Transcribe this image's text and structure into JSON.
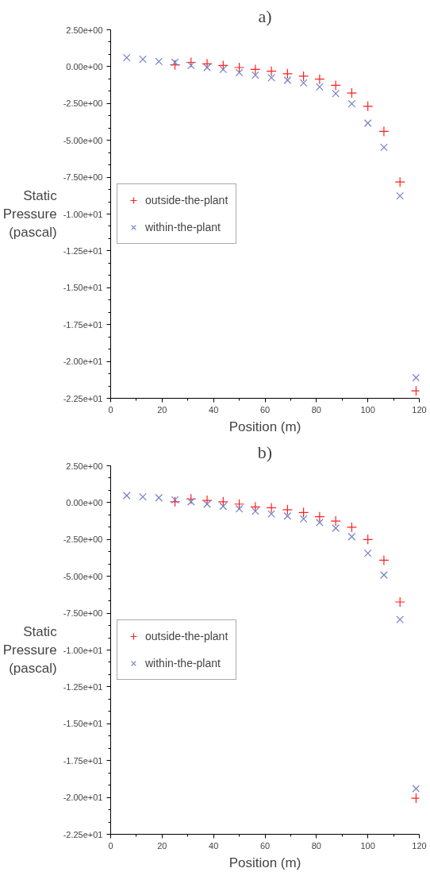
{
  "chart_data": [
    {
      "type": "scatter",
      "title": "a)",
      "xlabel": "Position (m)",
      "ylabel": "Static Pressure (pascal)",
      "xlim": [
        0,
        120
      ],
      "xticks": [
        0,
        20,
        40,
        60,
        80,
        100,
        120
      ],
      "ylim": [
        -22.5,
        2.5
      ],
      "yticks": [
        {
          "value": 2.5,
          "label": "2.50e+00"
        },
        {
          "value": 0,
          "label": "0.00e+00"
        },
        {
          "value": -2.5,
          "label": "-2.50e+00"
        },
        {
          "value": -5,
          "label": "-5.00e+00"
        },
        {
          "value": -7.5,
          "label": "-7.50e+00"
        },
        {
          "value": -10,
          "label": "-1.00e+01"
        },
        {
          "value": -12.5,
          "label": "-1.25e+01"
        },
        {
          "value": -15,
          "label": "-1.50e+01"
        },
        {
          "value": -17.5,
          "label": "-1.75e+01"
        },
        {
          "value": -20,
          "label": "-2.00e+01"
        },
        {
          "value": -22.5,
          "label": "-2.25e+01"
        }
      ],
      "grid": false,
      "legend": "left",
      "series": [
        {
          "name": "outside-the-plant",
          "color": "#ff2020",
          "marker": "cross",
          "x": [
            25,
            31.25,
            37.5,
            43.75,
            50,
            56.25,
            62.5,
            68.75,
            75,
            81.25,
            87.5,
            93.75,
            100,
            106.25,
            112.5,
            118.75
          ],
          "values": [
            0.12,
            0.29,
            0.19,
            0.08,
            -0.06,
            -0.19,
            -0.31,
            -0.48,
            -0.65,
            -0.85,
            -1.27,
            -1.79,
            -2.69,
            -4.39,
            -7.83,
            -22.0
          ]
        },
        {
          "name": "within-the-plant",
          "color": "#7080c8",
          "marker": "x",
          "x": [
            6.25,
            12.5,
            18.75,
            25,
            31.25,
            37.5,
            43.75,
            50,
            56.25,
            62.5,
            68.75,
            75,
            81.25,
            87.5,
            93.75,
            100,
            106.25,
            112.5,
            118.75
          ],
          "values": [
            0.61,
            0.5,
            0.35,
            0.29,
            0.08,
            -0.06,
            -0.19,
            -0.4,
            -0.58,
            -0.75,
            -0.92,
            -1.1,
            -1.37,
            -1.83,
            -2.52,
            -3.83,
            -5.48,
            -8.77,
            -21.1
          ]
        }
      ]
    },
    {
      "type": "scatter",
      "title": "b)",
      "xlabel": "Position (m)",
      "ylabel": "Static Pressure (pascal)",
      "xlim": [
        0,
        120
      ],
      "xticks": [
        0,
        20,
        40,
        60,
        80,
        100,
        120
      ],
      "ylim": [
        -22.5,
        2.5
      ],
      "yticks": [
        {
          "value": 2.5,
          "label": "2.50e+00"
        },
        {
          "value": 0,
          "label": "0.00e+00"
        },
        {
          "value": -2.5,
          "label": "-2.50e+00"
        },
        {
          "value": -5,
          "label": "-5.00e+00"
        },
        {
          "value": -7.5,
          "label": "-7.50e+00"
        },
        {
          "value": -10,
          "label": "-1.00e+01"
        },
        {
          "value": -12.5,
          "label": "-1.25e+01"
        },
        {
          "value": -15,
          "label": "-1.50e+01"
        },
        {
          "value": -17.5,
          "label": "-1.75e+01"
        },
        {
          "value": -20,
          "label": "-2.00e+01"
        },
        {
          "value": -22.5,
          "label": "-2.25e+01"
        }
      ],
      "grid": false,
      "legend": "left",
      "series": [
        {
          "name": "outside-the-plant",
          "color": "#ff2020",
          "marker": "cross",
          "x": [
            25,
            31.25,
            37.5,
            43.75,
            50,
            56.25,
            62.5,
            68.75,
            75,
            81.25,
            87.5,
            93.75,
            100,
            106.25,
            112.5,
            118.75
          ],
          "values": [
            0.06,
            0.25,
            0.15,
            0.06,
            -0.1,
            -0.29,
            -0.35,
            -0.48,
            -0.67,
            -0.96,
            -1.25,
            -1.67,
            -2.5,
            -3.91,
            -6.74,
            -20.05
          ]
        },
        {
          "name": "within-the-plant",
          "color": "#7080c8",
          "marker": "x",
          "x": [
            6.25,
            12.5,
            18.75,
            25,
            31.25,
            37.5,
            43.75,
            50,
            56.25,
            62.5,
            68.75,
            75,
            81.25,
            87.5,
            93.75,
            100,
            106.25,
            112.5,
            118.75
          ],
          "values": [
            0.48,
            0.39,
            0.33,
            0.19,
            0.06,
            -0.1,
            -0.25,
            -0.42,
            -0.58,
            -0.77,
            -0.91,
            -1.1,
            -1.35,
            -1.73,
            -2.31,
            -3.43,
            -4.91,
            -7.93,
            -19.4
          ]
        }
      ]
    }
  ]
}
